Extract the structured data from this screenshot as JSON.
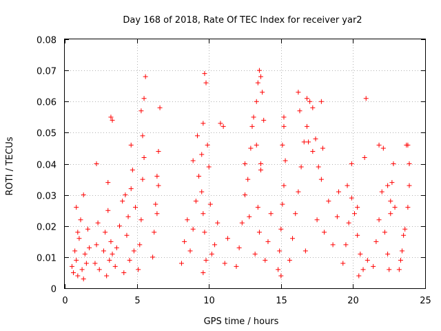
{
  "chart_data": {
    "type": "scatter",
    "title": "Day 168 of 2018, Rate Of TEC Index for receiver yar2",
    "xlabel": "GPS time / hours",
    "ylabel": "ROTI / TECUs",
    "xlim": [
      0,
      25
    ],
    "ylim": [
      0,
      0.08
    ],
    "x_ticks": [
      0,
      5,
      10,
      15,
      20,
      25
    ],
    "x_tick_labels": [
      "0",
      "5",
      "10",
      "15",
      "20",
      "25"
    ],
    "y_ticks": [
      0,
      0.01,
      0.02,
      0.03,
      0.04,
      0.05,
      0.06,
      0.07,
      0.08
    ],
    "y_tick_labels": [
      "0",
      "0.01",
      "0.02",
      "0.03",
      "0.04",
      "0.05",
      "0.06",
      "0.07",
      "0.08"
    ],
    "grid": true,
    "marker": "plus",
    "series": [
      {
        "name": "yar2",
        "color": "#ff0000",
        "x": [
          0.5,
          0.6,
          0.7,
          0.8,
          0.9,
          1.0,
          1.1,
          1.2,
          1.3,
          1.4,
          1.5,
          1.6,
          1.7,
          0.8,
          0.9,
          1.3,
          2.1,
          2.2,
          2.3,
          2.2,
          2.4,
          2.7,
          2.8,
          2.9,
          3.0,
          3.1,
          3.2,
          3.3,
          3.0,
          3.2,
          3.3,
          3.5,
          3.6,
          3.8,
          4.0,
          4.1,
          4.3,
          4.4,
          4.5,
          4.2,
          4.6,
          4.7,
          4.8,
          4.9,
          4.6,
          5.1,
          5.2,
          5.3,
          5.4,
          5.5,
          5.4,
          5.5,
          5.6,
          5.3,
          6.1,
          6.2,
          6.3,
          6.4,
          6.5,
          6.6,
          6.5,
          6.4,
          8.1,
          8.3,
          8.5,
          8.7,
          8.9,
          9.1,
          9.3,
          9.5,
          9.6,
          9.7,
          9.8,
          9.9,
          10.0,
          10.2,
          9.6,
          9.6,
          9.7,
          9.5,
          9.8,
          10.1,
          10.4,
          10.6,
          10.8,
          11.0,
          11.1,
          11.3,
          8.9,
          9.2,
          11.9,
          12.1,
          12.3,
          12.5,
          12.7,
          12.9,
          13.0,
          13.1,
          13.3,
          13.4,
          13.5,
          13.6,
          13.7,
          13.8,
          13.6,
          13.4,
          13.5,
          13.2,
          13.9,
          14.1,
          14.3,
          13.3,
          13.6,
          12.8,
          12.5,
          14.8,
          14.9,
          15.0,
          15.1,
          15.2,
          15.3,
          15.1,
          15.2,
          15.2,
          15.0,
          15.6,
          15.8,
          16.0,
          16.2,
          16.4,
          16.6,
          16.8,
          17.0,
          17.2,
          17.4,
          17.6,
          17.8,
          16.2,
          16.3,
          16.8,
          16.9,
          17.2,
          17.8,
          17.9,
          16.7,
          17.5,
          18.0,
          18.3,
          18.6,
          18.9,
          19.0,
          19.3,
          19.5,
          19.7,
          19.9,
          20.1,
          20.3,
          20.5,
          20.7,
          19.6,
          19.9,
          20.3,
          20.8,
          20.9,
          20.4,
          21.0,
          21.4,
          21.6,
          21.8,
          22.0,
          22.2,
          22.4,
          22.5,
          22.6,
          22.7,
          22.8,
          22.9,
          21.8,
          22.1,
          22.6,
          22.4,
          23.2,
          23.4,
          23.6,
          23.8,
          23.9,
          23.7,
          23.8,
          23.9,
          23.5,
          23.3
        ],
        "y": [
          0.007,
          0.005,
          0.012,
          0.009,
          0.004,
          0.016,
          0.022,
          0.006,
          0.003,
          0.011,
          0.008,
          0.019,
          0.013,
          0.026,
          0.018,
          0.03,
          0.008,
          0.014,
          0.021,
          0.04,
          0.006,
          0.012,
          0.018,
          0.004,
          0.025,
          0.009,
          0.015,
          0.011,
          0.034,
          0.055,
          0.054,
          0.007,
          0.013,
          0.02,
          0.028,
          0.005,
          0.017,
          0.023,
          0.009,
          0.03,
          0.046,
          0.038,
          0.012,
          0.026,
          0.032,
          0.006,
          0.014,
          0.022,
          0.035,
          0.042,
          0.049,
          0.061,
          0.068,
          0.057,
          0.01,
          0.018,
          0.027,
          0.036,
          0.044,
          0.058,
          0.033,
          0.024,
          0.008,
          0.015,
          0.022,
          0.012,
          0.019,
          0.028,
          0.036,
          0.043,
          0.053,
          0.069,
          0.066,
          0.046,
          0.039,
          0.011,
          0.024,
          0.005,
          0.018,
          0.031,
          0.009,
          0.027,
          0.014,
          0.021,
          0.053,
          0.052,
          0.008,
          0.016,
          0.041,
          0.049,
          0.007,
          0.013,
          0.021,
          0.03,
          0.035,
          0.045,
          0.052,
          0.055,
          0.06,
          0.066,
          0.07,
          0.068,
          0.063,
          0.054,
          0.038,
          0.026,
          0.018,
          0.011,
          0.009,
          0.015,
          0.024,
          0.046,
          0.04,
          0.023,
          0.04,
          0.006,
          0.012,
          0.019,
          0.027,
          0.033,
          0.041,
          0.046,
          0.052,
          0.055,
          0.004,
          0.009,
          0.016,
          0.024,
          0.031,
          0.039,
          0.047,
          0.052,
          0.06,
          0.058,
          0.048,
          0.039,
          0.035,
          0.063,
          0.057,
          0.061,
          0.047,
          0.044,
          0.06,
          0.045,
          0.012,
          0.022,
          0.018,
          0.028,
          0.014,
          0.023,
          0.031,
          0.008,
          0.014,
          0.021,
          0.029,
          0.024,
          0.017,
          0.011,
          0.006,
          0.033,
          0.04,
          0.026,
          0.042,
          0.061,
          0.004,
          0.009,
          0.007,
          0.015,
          0.022,
          0.031,
          0.018,
          0.011,
          0.006,
          0.028,
          0.034,
          0.04,
          0.026,
          0.046,
          0.045,
          0.024,
          0.033,
          0.006,
          0.012,
          0.019,
          0.026,
          0.033,
          0.046,
          0.046,
          0.04,
          0.017,
          0.009
        ]
      }
    ]
  }
}
